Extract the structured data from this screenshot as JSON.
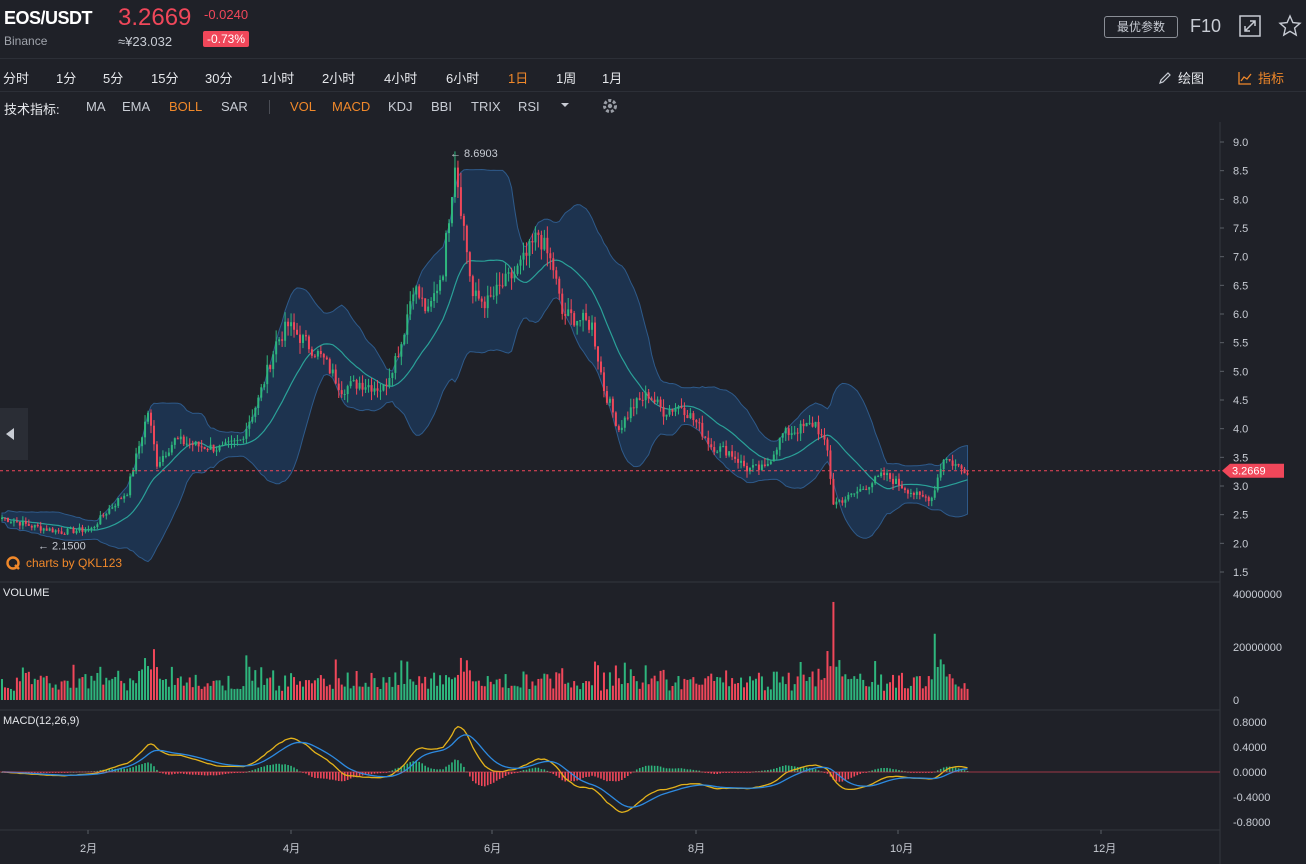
{
  "header": {
    "symbol": "EOS/USDT",
    "exchange": "Binance",
    "price": "3.2669",
    "change": "-0.0240",
    "cny_price": "≈¥23.032",
    "change_pct": "-0.73%",
    "opt_button": "最优参数",
    "f10": "F10",
    "up_color": "#f0475a",
    "down_color": "#2eb67d",
    "accent_color": "#f0882a"
  },
  "timeframes": [
    {
      "label": "分时",
      "active": false
    },
    {
      "label": "1分",
      "active": false
    },
    {
      "label": "5分",
      "active": false
    },
    {
      "label": "15分",
      "active": false
    },
    {
      "label": "30分",
      "active": false
    },
    {
      "label": "1小时",
      "active": false
    },
    {
      "label": "2小时",
      "active": false
    },
    {
      "label": "4小时",
      "active": false
    },
    {
      "label": "6小时",
      "active": false
    },
    {
      "label": "1日",
      "active": true
    },
    {
      "label": "1周",
      "active": false
    },
    {
      "label": "1月",
      "active": false
    }
  ],
  "tools": {
    "draw": "绘图",
    "indicators": "指标"
  },
  "indicators": {
    "label": "技术指标:",
    "main": [
      {
        "label": "MA",
        "on": false
      },
      {
        "label": "EMA",
        "on": false
      },
      {
        "label": "BOLL",
        "on": true
      },
      {
        "label": "SAR",
        "on": false
      }
    ],
    "sub": [
      {
        "label": "VOL",
        "on": true
      },
      {
        "label": "MACD",
        "on": true
      },
      {
        "label": "KDJ",
        "on": false
      },
      {
        "label": "BBI",
        "on": false
      },
      {
        "label": "TRIX",
        "on": false
      },
      {
        "label": "RSI",
        "on": false
      }
    ]
  },
  "watermark": "charts by QKL123",
  "chart_data": {
    "type": "candlestick",
    "overlay": "BOLL",
    "price_axis": {
      "ticks": [
        "9.0",
        "8.5",
        "8.0",
        "7.5",
        "7.0",
        "6.5",
        "6.0",
        "5.5",
        "5.0",
        "4.5",
        "4.0",
        "3.5",
        "3.0",
        "2.5",
        "2.0",
        "1.5"
      ],
      "range": [
        1.5,
        9.0
      ]
    },
    "time_axis": {
      "ticks": [
        "2月",
        "4月",
        "6月",
        "8月",
        "10月",
        "12月"
      ]
    },
    "last_price": "3.2669",
    "high_marker": "8.6903",
    "low_marker": "2.1500",
    "price_path": [
      [
        0,
        2.45
      ],
      [
        10,
        2.3
      ],
      [
        20,
        2.2
      ],
      [
        30,
        2.25
      ],
      [
        35,
        2.55
      ],
      [
        42,
        2.9
      ],
      [
        46,
        3.7
      ],
      [
        49,
        4.3
      ],
      [
        52,
        3.4
      ],
      [
        58,
        3.8
      ],
      [
        66,
        3.7
      ],
      [
        74,
        3.65
      ],
      [
        80,
        3.8
      ],
      [
        86,
        4.5
      ],
      [
        92,
        5.5
      ],
      [
        96,
        5.8
      ],
      [
        102,
        5.5
      ],
      [
        108,
        5.2
      ],
      [
        114,
        4.7
      ],
      [
        120,
        4.8
      ],
      [
        128,
        4.7
      ],
      [
        134,
        5.5
      ],
      [
        138,
        6.5
      ],
      [
        143,
        6.0
      ],
      [
        148,
        6.8
      ],
      [
        152,
        8.69
      ],
      [
        155,
        7.5
      ],
      [
        158,
        6.3
      ],
      [
        163,
        6.2
      ],
      [
        168,
        6.5
      ],
      [
        172,
        6.7
      ],
      [
        176,
        7.0
      ],
      [
        180,
        7.4
      ],
      [
        185,
        6.8
      ],
      [
        188,
        6.0
      ],
      [
        194,
        5.9
      ],
      [
        198,
        5.8
      ],
      [
        202,
        4.7
      ],
      [
        207,
        4.0
      ],
      [
        212,
        4.4
      ],
      [
        217,
        4.6
      ],
      [
        222,
        4.3
      ],
      [
        228,
        4.4
      ],
      [
        233,
        4.1
      ],
      [
        238,
        3.7
      ],
      [
        244,
        3.6
      ],
      [
        250,
        3.3
      ],
      [
        256,
        3.3
      ],
      [
        262,
        3.9
      ],
      [
        268,
        4.0
      ],
      [
        273,
        4.1
      ],
      [
        277,
        3.6
      ],
      [
        279,
        2.7
      ],
      [
        284,
        2.8
      ],
      [
        290,
        3.0
      ],
      [
        296,
        3.2
      ],
      [
        302,
        3.0
      ],
      [
        308,
        2.8
      ],
      [
        312,
        2.8
      ],
      [
        316,
        3.5
      ],
      [
        322,
        3.3
      ],
      [
        325,
        3.27
      ]
    ],
    "volume_axis": {
      "ticks": [
        "40000000",
        "20000000",
        "0"
      ],
      "max": 40000000
    },
    "macd": {
      "label": "MACD(12,26,9)",
      "ticks": [
        "0.8000",
        "0.4000",
        "0.0000",
        "-0.4000",
        "-0.8000"
      ],
      "range": [
        -0.8,
        0.8
      ]
    }
  }
}
